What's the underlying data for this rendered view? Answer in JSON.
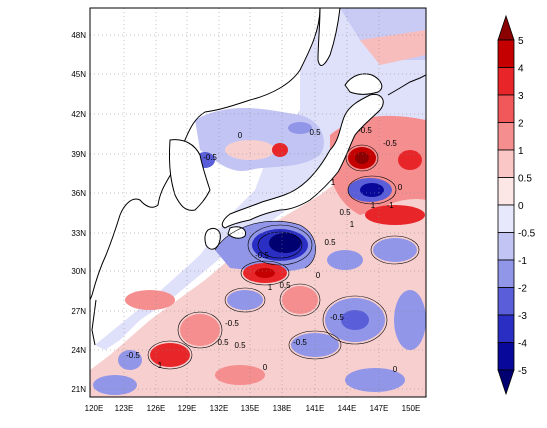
{
  "map": {
    "lat_labels": [
      "48N",
      "45N",
      "42N",
      "39N",
      "36N",
      "33N",
      "30N",
      "27N",
      "24N",
      "21N"
    ],
    "lon_labels": [
      "120E",
      "123E",
      "126E",
      "129E",
      "132E",
      "135E",
      "138E",
      "141E",
      "144E",
      "147E",
      "150E"
    ],
    "contour_labels": [
      "0",
      "-0.5",
      "0.5",
      "1",
      "-1",
      "0",
      "0.5",
      "-0.5",
      "1",
      "0",
      "-0.5",
      "0.5",
      "1",
      "-0.5",
      "0.5",
      "1",
      "-0.5",
      "0",
      "1",
      "-0.5",
      "-0.5",
      "0.5",
      "0.5",
      "0",
      "-0.5"
    ]
  },
  "colorbar": {
    "labels": [
      "5",
      "4",
      "3",
      "2",
      "1",
      "0.5",
      "0",
      "-0.5",
      "-1",
      "-2",
      "-3",
      "-4",
      "-5"
    ],
    "colors": [
      "#8b0000",
      "#c40000",
      "#e8262a",
      "#f0585a",
      "#f58e8f",
      "#fbc6c6",
      "#fce6e6",
      "#e7e8fb",
      "#c2c5f4",
      "#9196e8",
      "#5a5fd9",
      "#2a2ec2",
      "#08089a",
      "#000070"
    ]
  }
}
